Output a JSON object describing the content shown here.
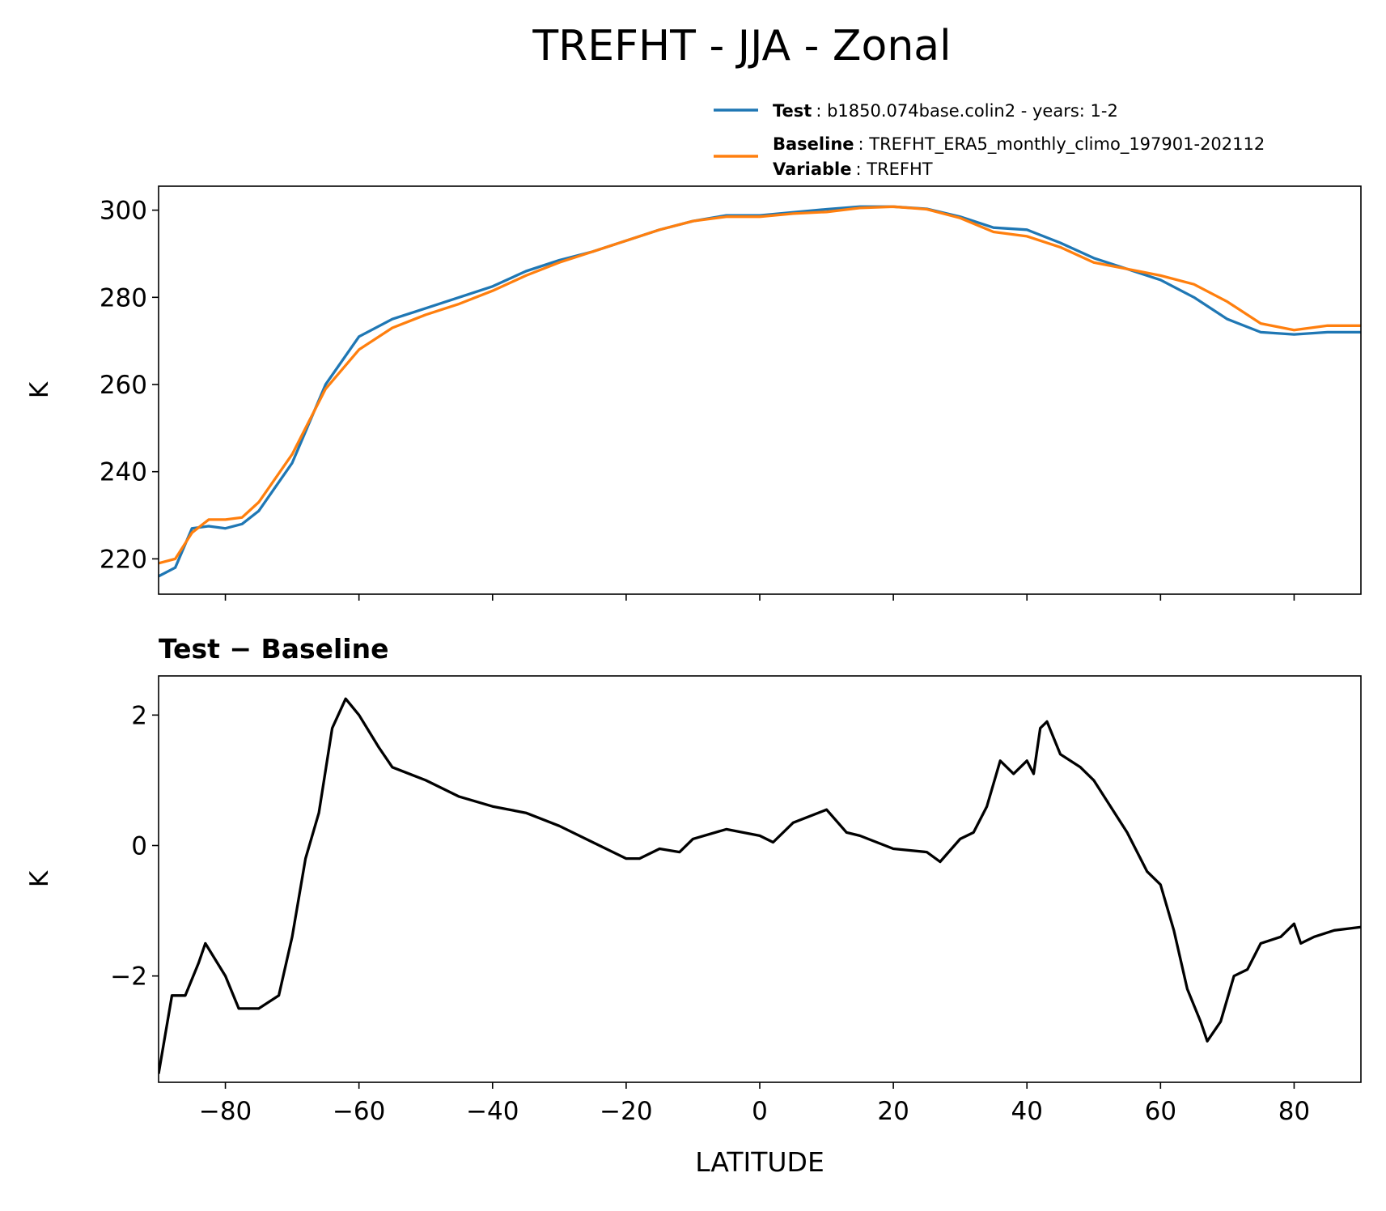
{
  "title": "TREFHT - JJA - Zonal",
  "chart_data": [
    {
      "type": "line",
      "ylabel": "K",
      "x": [
        -90,
        -87.5,
        -85,
        -82.5,
        -80,
        -77.5,
        -75,
        -70,
        -65,
        -60,
        -55,
        -50,
        -45,
        -40,
        -35,
        -30,
        -25,
        -20,
        -15,
        -10,
        -5,
        0,
        5,
        10,
        15,
        20,
        25,
        30,
        35,
        40,
        45,
        50,
        55,
        60,
        65,
        70,
        75,
        80,
        85,
        90
      ],
      "series": [
        {
          "name": "Test",
          "desc": ": b1850.074base.colin2 - years: 1-2",
          "color": "#1f77b4",
          "values": [
            216,
            218,
            227,
            227.5,
            227,
            228,
            231,
            242,
            260,
            271,
            275,
            277.5,
            280,
            282.5,
            286,
            288.5,
            290.5,
            293,
            295.5,
            297.5,
            298.8,
            298.8,
            299.5,
            300.2,
            300.8,
            300.8,
            300.3,
            298.5,
            296,
            295.5,
            292.5,
            289,
            286.5,
            284,
            280,
            275,
            272,
            271.5,
            272,
            272
          ]
        },
        {
          "name": "Baseline",
          "desc": ": TREFHT_ERA5_monthly_climo_197901-202112",
          "color": "#ff7f0e",
          "values": [
            219,
            220,
            226,
            229,
            229,
            229.5,
            233,
            244,
            259,
            268,
            273,
            276,
            278.5,
            281.5,
            285,
            288,
            290.5,
            293,
            295.5,
            297.5,
            298.5,
            298.5,
            299.2,
            299.6,
            300.5,
            300.8,
            300.2,
            298.2,
            295,
            294,
            291.5,
            288,
            286.5,
            285,
            283,
            279,
            274,
            272.5,
            273.5,
            273.5
          ]
        }
      ],
      "legend_extra": {
        "name": "Variable",
        "desc": ": TREFHT"
      },
      "xlim": [
        -90,
        90
      ],
      "xticks": [
        {
          "value": -80,
          "label": "−80"
        },
        {
          "value": -60,
          "label": "−60"
        },
        {
          "value": -40,
          "label": "−40"
        },
        {
          "value": -20,
          "label": "−20"
        },
        0,
        20,
        40,
        60,
        80
      ],
      "xticklabels": false,
      "ylim": [
        211.9,
        305.5
      ],
      "yticks": [
        220,
        240,
        260,
        280,
        300
      ]
    },
    {
      "type": "line",
      "title": "Test − Baseline",
      "ylabel": "K",
      "xlabel": "LATITUDE",
      "x": [
        -90,
        -88,
        -86,
        -84,
        -83,
        -80,
        -78,
        -75,
        -72,
        -70,
        -68,
        -66,
        -64,
        -62,
        -60,
        -57,
        -55,
        -50,
        -45,
        -40,
        -35,
        -30,
        -25,
        -20,
        -18,
        -15,
        -12,
        -10,
        -5,
        0,
        2,
        5,
        10,
        13,
        15,
        20,
        25,
        27,
        30,
        32,
        34,
        36,
        38,
        40,
        41,
        42,
        43,
        45,
        48,
        50,
        55,
        58,
        60,
        62,
        64,
        66,
        67,
        69,
        71,
        73,
        75,
        78,
        80,
        81,
        83,
        86,
        90
      ],
      "series": [
        {
          "color": "#000000",
          "values": [
            -3.5,
            -2.3,
            -2.3,
            -1.8,
            -1.5,
            -2.0,
            -2.5,
            -2.5,
            -2.3,
            -1.4,
            -0.2,
            0.5,
            1.8,
            2.25,
            2.0,
            1.5,
            1.2,
            1.0,
            0.75,
            0.6,
            0.5,
            0.3,
            0.05,
            -0.2,
            -0.2,
            -0.05,
            -0.1,
            0.1,
            0.25,
            0.15,
            0.05,
            0.35,
            0.55,
            0.2,
            0.15,
            -0.05,
            -0.1,
            -0.25,
            0.1,
            0.2,
            0.6,
            1.3,
            1.1,
            1.3,
            1.1,
            1.8,
            1.9,
            1.4,
            1.2,
            1.0,
            0.2,
            -0.4,
            -0.6,
            -1.3,
            -2.2,
            -2.7,
            -3.0,
            -2.7,
            -2.0,
            -1.9,
            -1.5,
            -1.4,
            -1.2,
            -1.5,
            -1.4,
            -1.3,
            -1.25
          ]
        }
      ],
      "xlim": [
        -90,
        90
      ],
      "xticks": [
        {
          "value": -80,
          "label": "−80"
        },
        {
          "value": -60,
          "label": "−60"
        },
        {
          "value": -40,
          "label": "−40"
        },
        {
          "value": -20,
          "label": "−20"
        },
        0,
        20,
        40,
        60,
        80
      ],
      "xticklabels": true,
      "ylim": [
        -3.63,
        2.6
      ],
      "yticks": [
        {
          "value": -2,
          "label": "−2"
        },
        0,
        2
      ]
    }
  ]
}
